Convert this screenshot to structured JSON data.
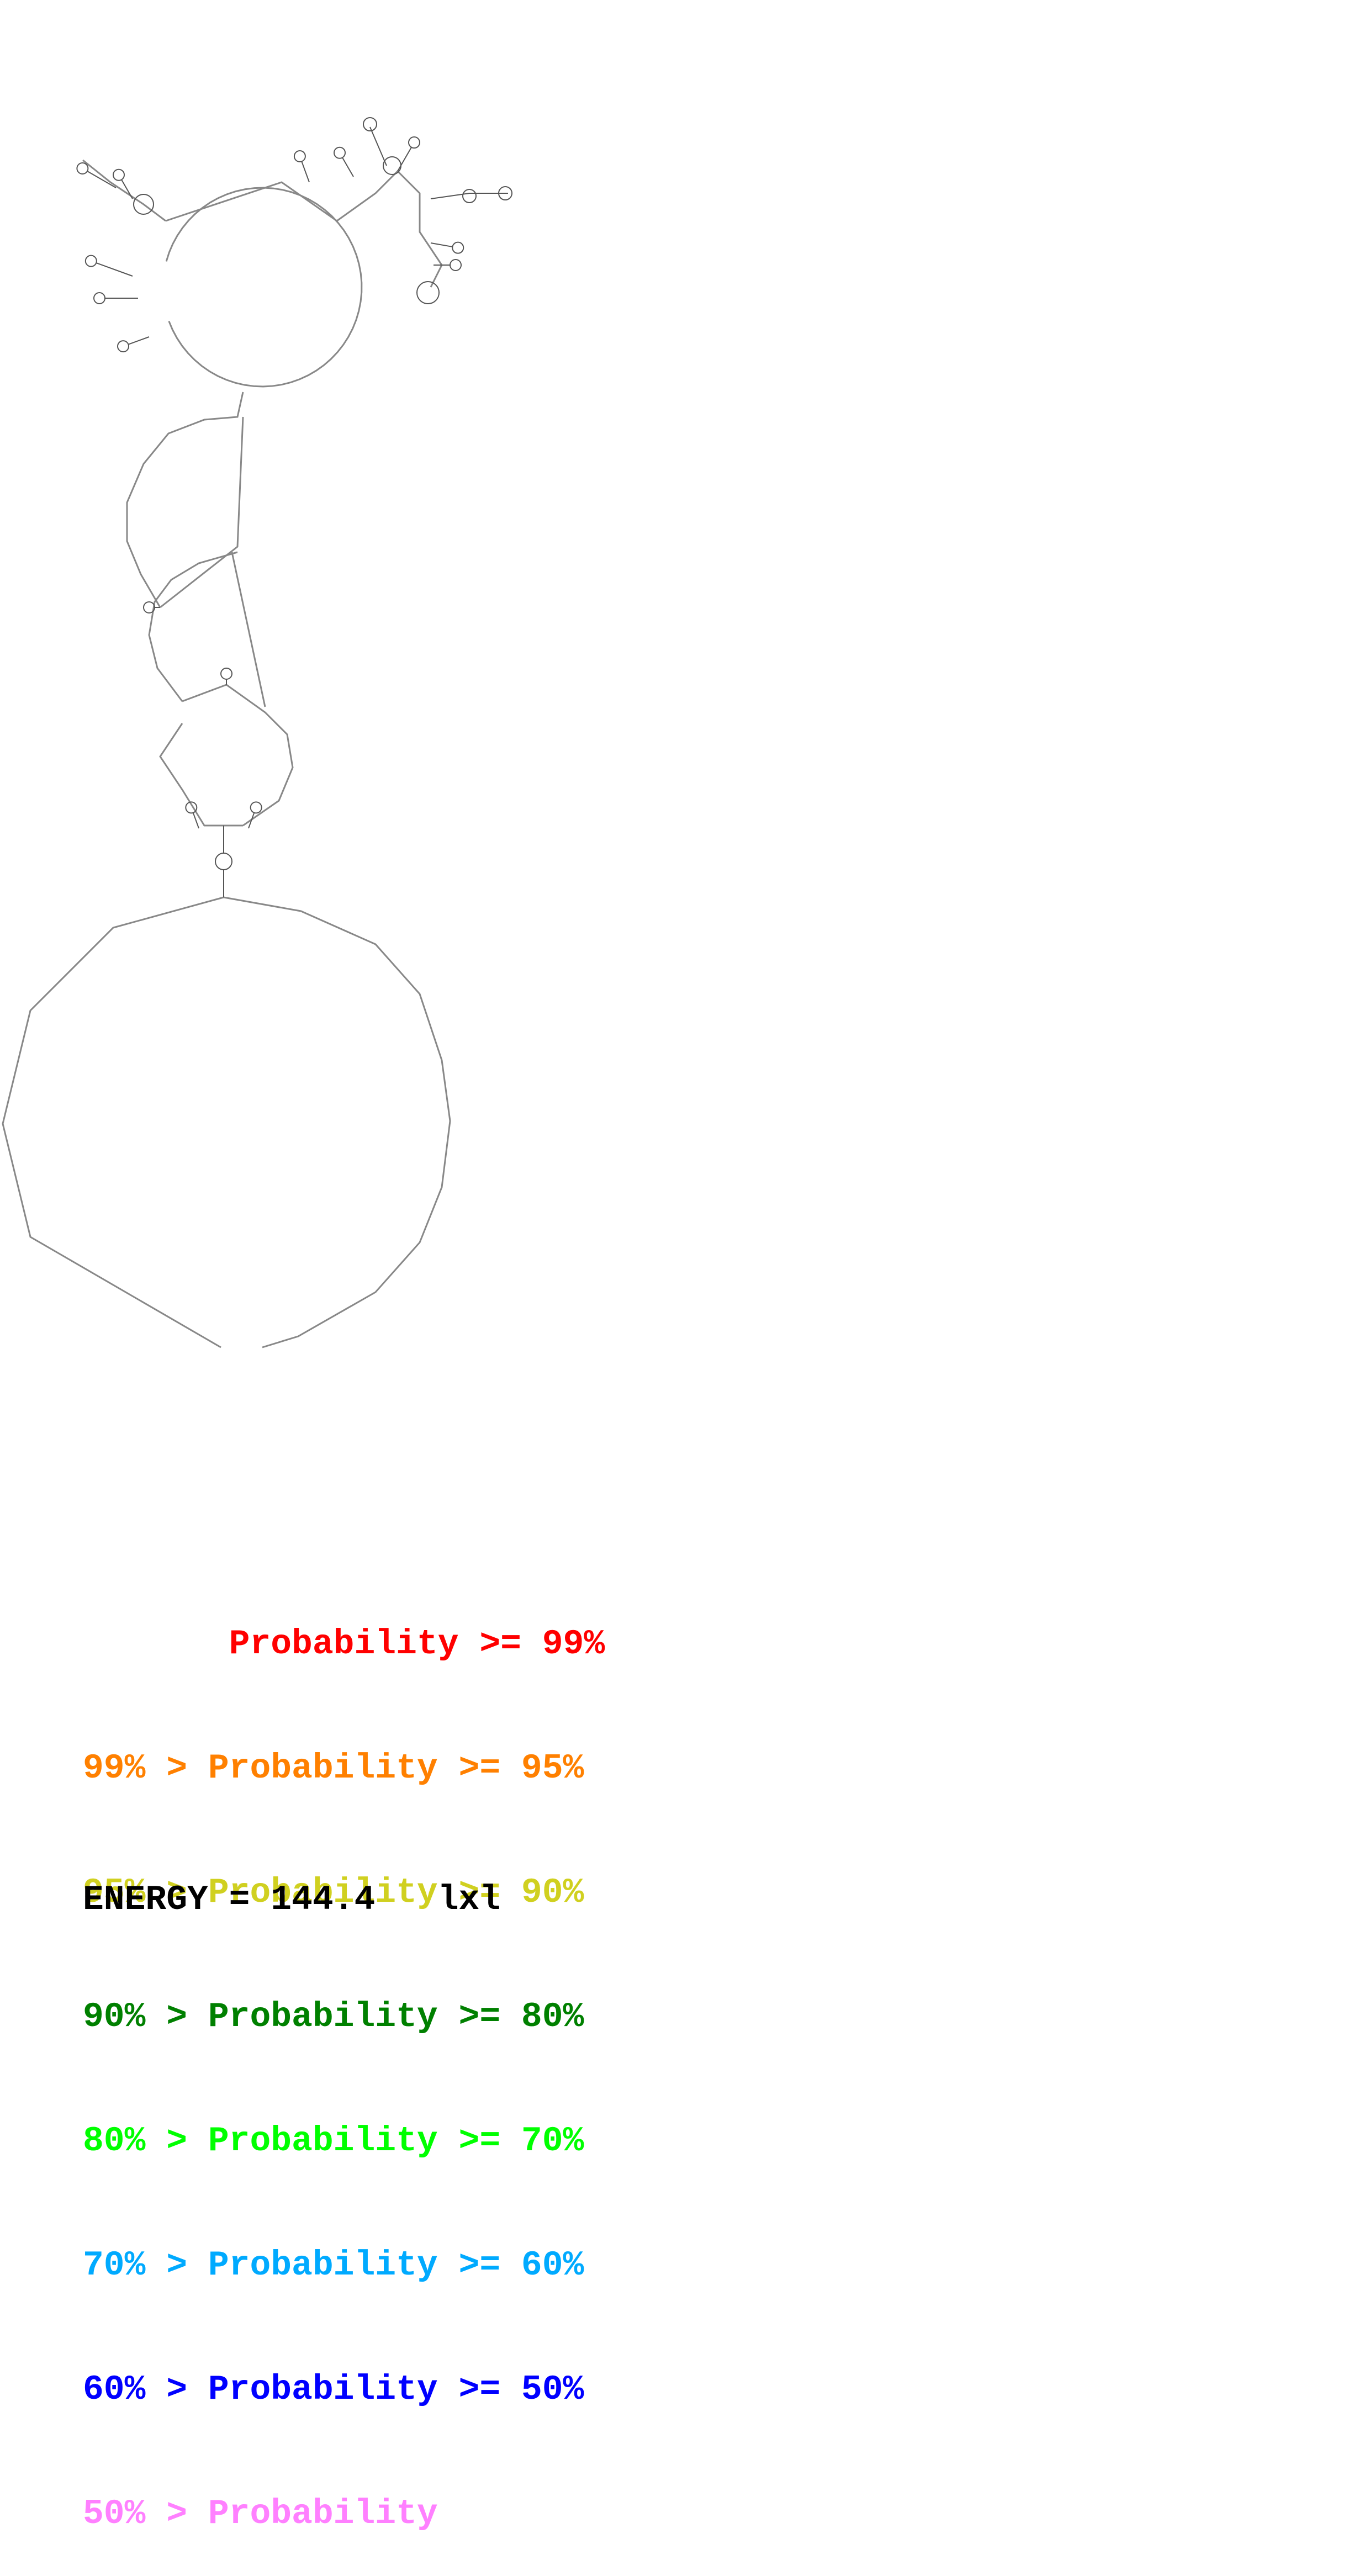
{
  "legend": [
    {
      "text": "       Probability >= 99%",
      "color": "#ff0000"
    },
    {
      "text": "99% > Probability >= 95%",
      "color": "#ff8000"
    },
    {
      "text": "95% > Probability >= 90%",
      "color": "#d0d020"
    },
    {
      "text": "90% > Probability >= 80%",
      "color": "#008000"
    },
    {
      "text": "80% > Probability >= 70%",
      "color": "#00ff00"
    },
    {
      "text": "70% > Probability >= 60%",
      "color": "#00aaff"
    },
    {
      "text": "60% > Probability >= 50%",
      "color": "#0000ff"
    },
    {
      "text": "50% > Probability",
      "color": "#ff80ff"
    }
  ],
  "energy": {
    "label": "ENERGY = 144.4",
    "name": "lxl"
  },
  "colors": {
    "backbone": "#888888",
    "pairs": "#444444"
  }
}
